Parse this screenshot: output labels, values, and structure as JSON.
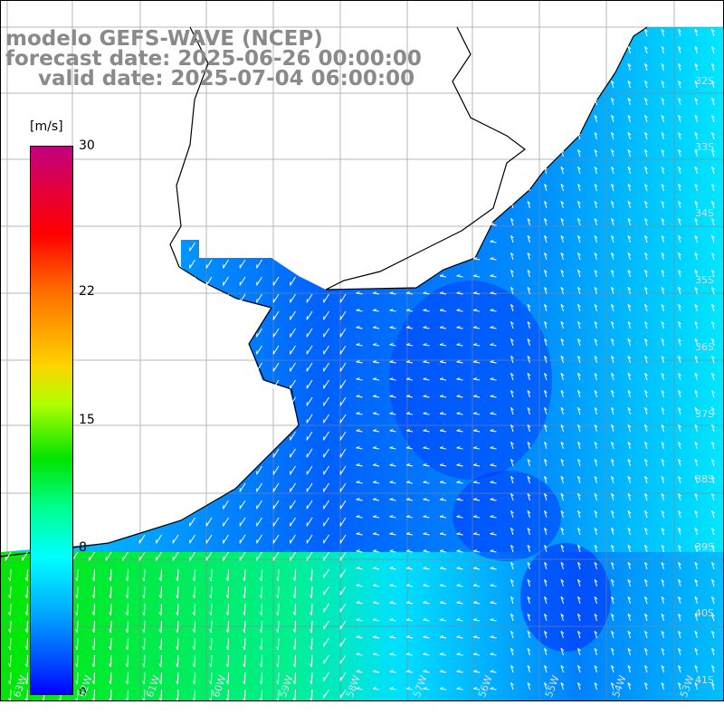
{
  "title": {
    "line1": "modelo GEFS-WAVE (NCEP)",
    "line2": "forecast date: 2025-06-26 00:00:00",
    "line3": "valid date: 2025-07-04 06:00:00"
  },
  "colorbar": {
    "unit": "[m/s]",
    "ticks": [
      {
        "label": "30",
        "value": 30
      },
      {
        "label": "22",
        "value": 22
      },
      {
        "label": "15",
        "value": 15
      },
      {
        "label": "8",
        "value": 8
      },
      {
        "label": "0",
        "value": 0
      }
    ]
  },
  "grid": {
    "lat_labels": [
      "32S",
      "33S",
      "34S",
      "35S",
      "36S",
      "37S",
      "38S",
      "39S",
      "40S",
      "41S"
    ],
    "lon_labels": [
      "63W",
      "62W",
      "61W",
      "60W",
      "59W",
      "58W",
      "57W",
      "56W",
      "55W",
      "54W",
      "53W"
    ]
  },
  "colors": {
    "ocean_strong": "#0040ff",
    "ocean_medium": "#00a8ff",
    "ocean_light": "#00f0ff",
    "green_wind": "#00e000",
    "arrow": "#ffffff",
    "coast": "#000000",
    "title_text": "#8a8a8a"
  }
}
